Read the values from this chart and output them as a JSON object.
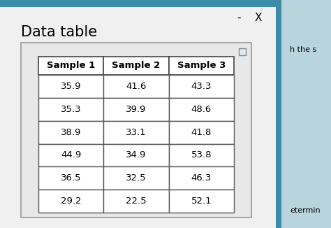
{
  "title": "Data table",
  "col_headers": [
    "Sample 1",
    "Sample 2",
    "Sample 3"
  ],
  "rows": [
    [
      "35.9",
      "41.6",
      "43.3"
    ],
    [
      "35.3",
      "39.9",
      "48.6"
    ],
    [
      "38.9",
      "33.1",
      "41.8"
    ],
    [
      "44.9",
      "34.9",
      "53.8"
    ],
    [
      "36.5",
      "32.5",
      "46.3"
    ],
    [
      "29.2",
      "22.5",
      "52.1"
    ]
  ],
  "bg_color": "#c8c8c8",
  "panel_color": "#f0f0f0",
  "table_bg": "#ffffff",
  "border_color": "#3a8ca8",
  "title_fontsize": 15,
  "header_fontsize": 9.5,
  "cell_fontsize": 9.5,
  "minus_x": "-    X",
  "right_text": "h the s",
  "bottom_text": "etermin"
}
